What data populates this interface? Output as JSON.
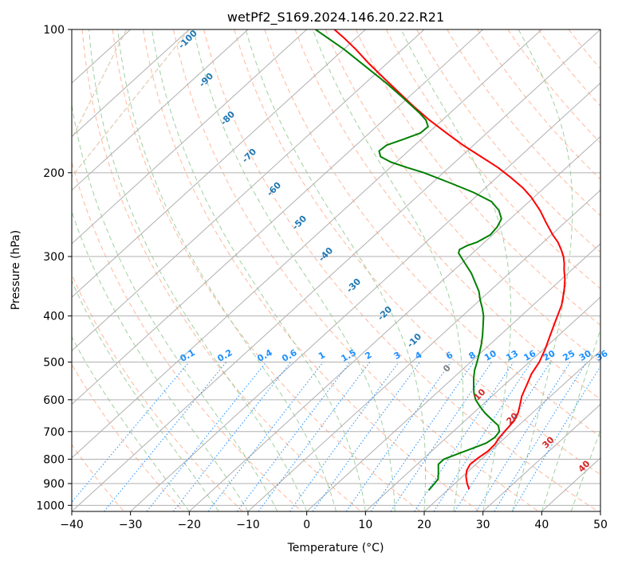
{
  "chart_data": {
    "type": "line",
    "subtype": "skew-t log-p diagram",
    "title": "wetPf2_S169.2024.146.20.22.R21",
    "xlabel": "Temperature (°C)",
    "ylabel": "Pressure (hPa)",
    "xlim": [
      -40,
      50
    ],
    "ylim": [
      1030,
      100
    ],
    "y_scale": "log",
    "x_ticks": [
      "−40",
      "−30",
      "−20",
      "−10",
      "0",
      "10",
      "20",
      "30",
      "40",
      "50"
    ],
    "y_ticks": [
      "100",
      "200",
      "300",
      "400",
      "500",
      "600",
      "700",
      "800",
      "900",
      "1000"
    ],
    "grid": true,
    "series": [
      {
        "role": "temperature",
        "color": "#ff0000",
        "points": [
          [
            925,
            23.5
          ],
          [
            900,
            22.1
          ],
          [
            870,
            20.6
          ],
          [
            845,
            19.6
          ],
          [
            820,
            19.0
          ],
          [
            795,
            19.2
          ],
          [
            770,
            19.6
          ],
          [
            745,
            19.5
          ],
          [
            720,
            19.0
          ],
          [
            695,
            18.7
          ],
          [
            665,
            18.4
          ],
          [
            640,
            17.6
          ],
          [
            615,
            16.4
          ],
          [
            590,
            15.1
          ],
          [
            560,
            13.9
          ],
          [
            530,
            12.6
          ],
          [
            500,
            11.7
          ],
          [
            470,
            10.3
          ],
          [
            440,
            8.6
          ],
          [
            410,
            6.8
          ],
          [
            380,
            4.9
          ],
          [
            365,
            3.6
          ],
          [
            350,
            2.2
          ],
          [
            335,
            0.6
          ],
          [
            320,
            -1.3
          ],
          [
            310,
            -2.5
          ],
          [
            300,
            -3.9
          ],
          [
            290,
            -5.6
          ],
          [
            280,
            -7.5
          ],
          [
            270,
            -9.8
          ],
          [
            255,
            -13.1
          ],
          [
            240,
            -16.5
          ],
          [
            225,
            -20.5
          ],
          [
            215,
            -23.7
          ],
          [
            205,
            -27.5
          ],
          [
            195,
            -31.7
          ],
          [
            185,
            -36.6
          ],
          [
            175,
            -41.8
          ],
          [
            165,
            -46.9
          ],
          [
            155,
            -52.2
          ],
          [
            145,
            -57.5
          ],
          [
            135,
            -62.9
          ],
          [
            125,
            -68.7
          ],
          [
            118,
            -73.0
          ],
          [
            110,
            -78.0
          ],
          [
            104,
            -82.2
          ],
          [
            100,
            -85.3
          ]
        ]
      },
      {
        "role": "dewpoint",
        "color": "#008000",
        "points": [
          [
            930,
            16.8
          ],
          [
            905,
            16.6
          ],
          [
            880,
            16.3
          ],
          [
            850,
            15.0
          ],
          [
            820,
            13.6
          ],
          [
            800,
            13.6
          ],
          [
            780,
            14.9
          ],
          [
            760,
            16.4
          ],
          [
            740,
            17.8
          ],
          [
            720,
            18.2
          ],
          [
            700,
            17.9
          ],
          [
            680,
            16.6
          ],
          [
            660,
            14.3
          ],
          [
            640,
            12.0
          ],
          [
            620,
            9.9
          ],
          [
            600,
            7.9
          ],
          [
            580,
            6.3
          ],
          [
            560,
            4.9
          ],
          [
            540,
            3.5
          ],
          [
            520,
            2.2
          ],
          [
            500,
            1.1
          ],
          [
            480,
            -0.1
          ],
          [
            460,
            -1.4
          ],
          [
            440,
            -2.9
          ],
          [
            420,
            -4.6
          ],
          [
            400,
            -6.4
          ],
          [
            385,
            -8.1
          ],
          [
            370,
            -10.0
          ],
          [
            355,
            -11.8
          ],
          [
            340,
            -14.1
          ],
          [
            325,
            -16.5
          ],
          [
            310,
            -19.4
          ],
          [
            300,
            -21.4
          ],
          [
            295,
            -22.4
          ],
          [
            290,
            -22.9
          ],
          [
            285,
            -22.4
          ],
          [
            280,
            -21.3
          ],
          [
            270,
            -20.4
          ],
          [
            260,
            -20.7
          ],
          [
            250,
            -21.5
          ],
          [
            240,
            -23.5
          ],
          [
            230,
            -26.4
          ],
          [
            220,
            -31.2
          ],
          [
            210,
            -37.0
          ],
          [
            200,
            -43.3
          ],
          [
            195,
            -47.2
          ],
          [
            190,
            -50.9
          ],
          [
            185,
            -53.7
          ],
          [
            180,
            -55.0
          ],
          [
            175,
            -54.8
          ],
          [
            170,
            -53.0
          ],
          [
            165,
            -51.3
          ],
          [
            160,
            -51.2
          ],
          [
            155,
            -52.8
          ],
          [
            150,
            -55.1
          ],
          [
            140,
            -60.4
          ],
          [
            130,
            -66.2
          ],
          [
            120,
            -72.8
          ],
          [
            110,
            -80.0
          ],
          [
            100,
            -88.5
          ]
        ]
      }
    ],
    "isotherm_labels": [
      "-100",
      "-90",
      "-80",
      "-70",
      "-60",
      "-50",
      "-40",
      "-30",
      "-20",
      "-10"
    ],
    "mixing_ratio_labels": [
      "0.1",
      "0.2",
      "0.4",
      "0.6",
      "1",
      "1.5",
      "2",
      "3",
      "4",
      "6",
      "8",
      "10",
      "13",
      "16",
      "20",
      "25",
      "30",
      "36"
    ],
    "isotherm_labels_warm": [
      "0",
      "10",
      "20",
      "30",
      "40"
    ],
    "colors": {
      "isotherm": "#b0b0b0",
      "dry_adiabat": "#ffa07a",
      "moist_adiabat": "#90c890",
      "mixing_ratio": "#1e90ff",
      "cold_label": "#1f77b4",
      "warm_label": "#d62728",
      "zero_label": "#7f7f7f",
      "background_curve": "#d2b48c"
    }
  }
}
